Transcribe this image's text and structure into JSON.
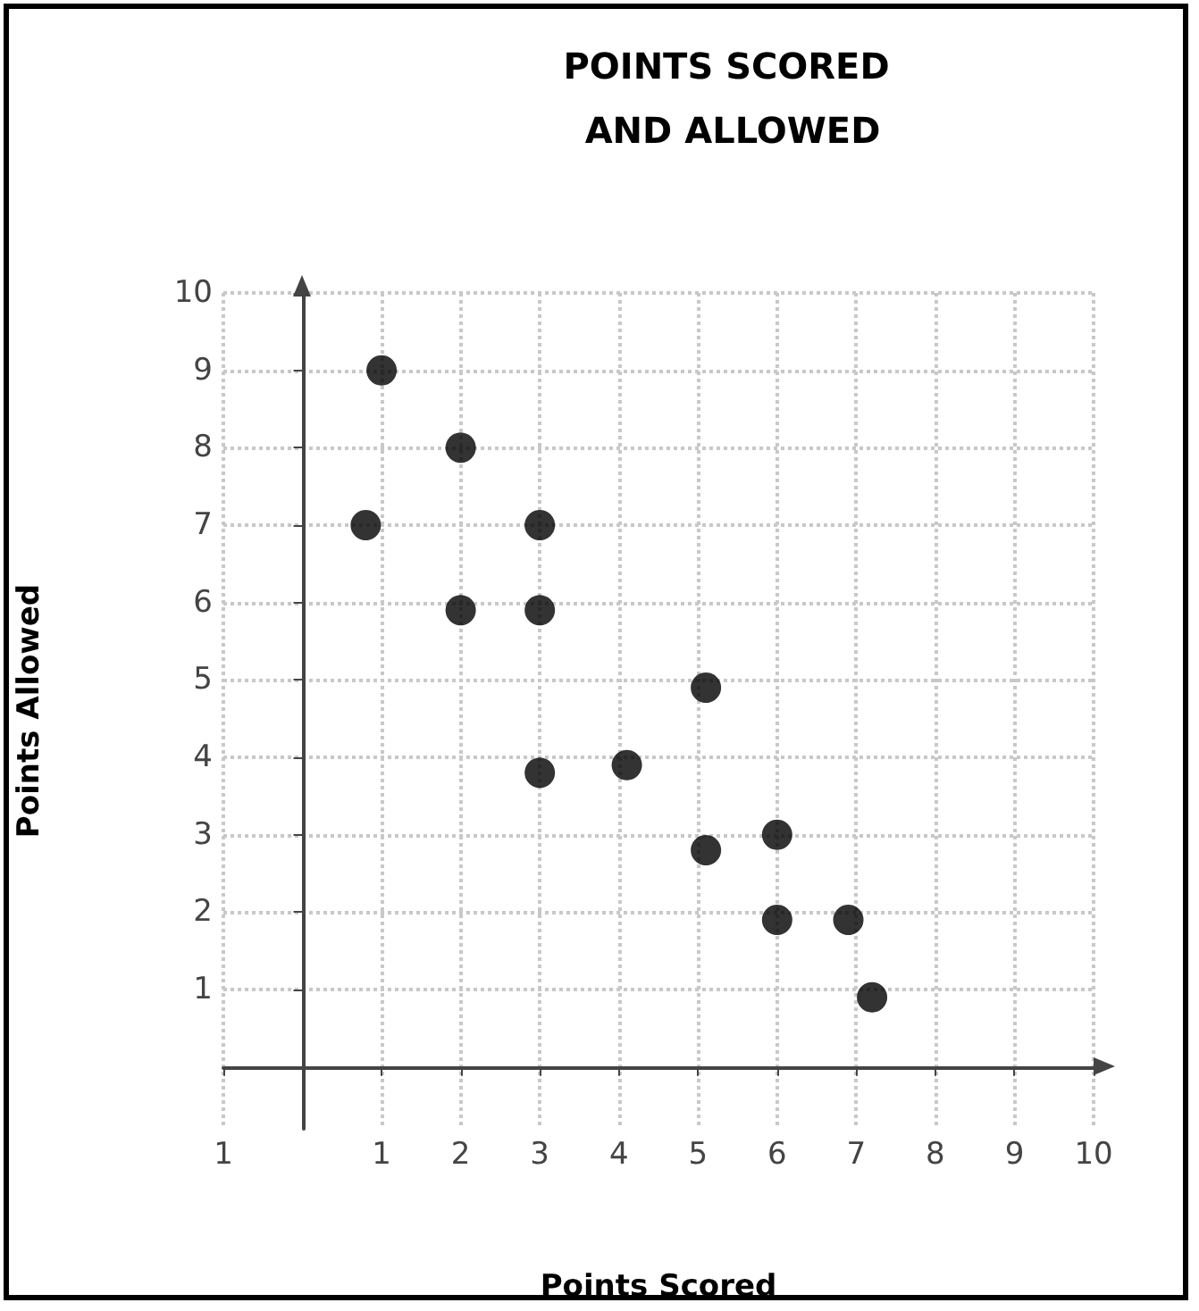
{
  "chart_data": {
    "type": "scatter",
    "title": "POINTS SCORED AND ALLOWED",
    "xlabel": "Points Scored",
    "ylabel": "Points Allowed",
    "x": [
      0.8,
      1,
      2,
      2,
      3,
      3,
      3,
      4.1,
      5.1,
      5.1,
      6,
      6,
      6.9,
      7.2
    ],
    "series": [
      {
        "color": "#000000",
        "values": [
          7,
          9,
          8,
          5.9,
          7,
          5.9,
          3.8,
          3.9,
          4.9,
          2.8,
          3,
          1.9,
          1.9,
          0.9
        ]
      }
    ],
    "xlim": [
      -1,
      10
    ],
    "xticks": [
      {
        "value": -1,
        "label": "1"
      },
      {
        "value": 0,
        "label": null
      },
      1,
      2,
      3,
      4,
      5,
      6,
      7,
      8,
      9,
      10
    ],
    "ylim": [
      -0.8,
      10
    ],
    "yticks": [
      {
        "value": 0,
        "label": null
      },
      1,
      2,
      3,
      4,
      5,
      6,
      7,
      8,
      9,
      10
    ],
    "grid": true,
    "marker": "circle"
  }
}
